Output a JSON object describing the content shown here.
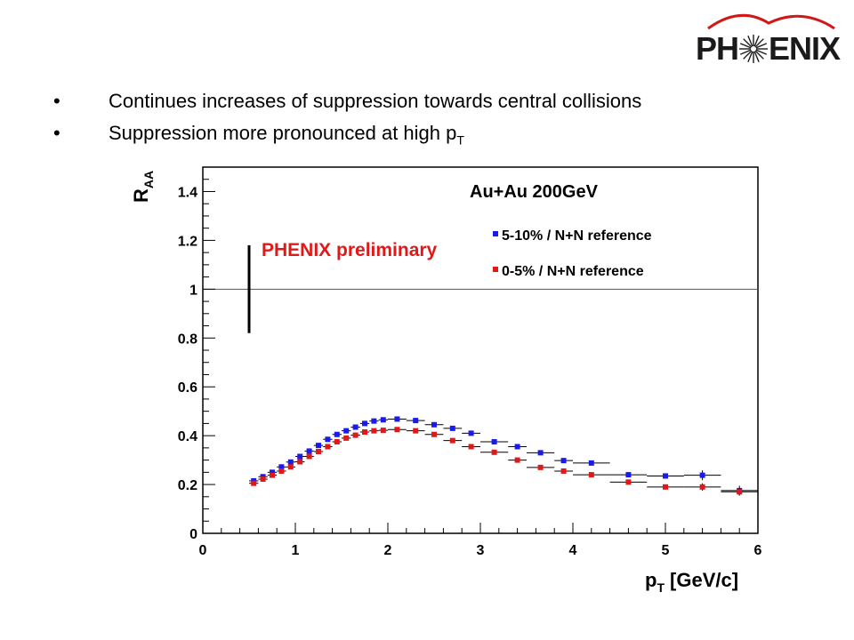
{
  "logo": {
    "left": "PH",
    "right": "ENIX",
    "icon": "phenix-starburst-icon",
    "arc_color": "#d01818"
  },
  "bullets": [
    {
      "text": "Continues increases of suppression towards central collisions",
      "sub": ""
    },
    {
      "text": "Suppression more pronounced at high p",
      "sub": "T"
    }
  ],
  "chart_data": {
    "type": "scatter",
    "title": "Au+Au 200GeV",
    "annotation": "PHENIX preliminary",
    "xlabel": "p",
    "xlabel_sub": "T",
    "xlabel_unit": "[GeV/c]",
    "ylabel": "R",
    "ylabel_sub": "AA",
    "xlim": [
      0,
      6
    ],
    "ylim": [
      0,
      1.5
    ],
    "x_ticks": [
      "0",
      "1",
      "2",
      "3",
      "4",
      "5",
      "6"
    ],
    "y_ticks": [
      "0",
      "0.2",
      "0.4",
      "0.6",
      "0.8",
      "1",
      "1.2",
      "1.4"
    ],
    "reference_line": 1,
    "systematic_bar": {
      "x": 0.5,
      "y_low": 0.82,
      "y_high": 1.18
    },
    "legend_placement": "top-right",
    "series": [
      {
        "name": "5-10% / N+N reference",
        "color": "#1a1aee",
        "points": [
          {
            "x": 0.55,
            "y": 0.215,
            "xerr": 0.05
          },
          {
            "x": 0.65,
            "y": 0.232,
            "xerr": 0.05
          },
          {
            "x": 0.75,
            "y": 0.25,
            "xerr": 0.05
          },
          {
            "x": 0.85,
            "y": 0.272,
            "xerr": 0.05
          },
          {
            "x": 0.95,
            "y": 0.292,
            "xerr": 0.05
          },
          {
            "x": 1.05,
            "y": 0.315,
            "xerr": 0.05
          },
          {
            "x": 1.15,
            "y": 0.337,
            "xerr": 0.05
          },
          {
            "x": 1.25,
            "y": 0.36,
            "xerr": 0.05
          },
          {
            "x": 1.35,
            "y": 0.385,
            "xerr": 0.05
          },
          {
            "x": 1.45,
            "y": 0.405,
            "xerr": 0.05
          },
          {
            "x": 1.55,
            "y": 0.42,
            "xerr": 0.05
          },
          {
            "x": 1.65,
            "y": 0.435,
            "xerr": 0.05
          },
          {
            "x": 1.75,
            "y": 0.45,
            "xerr": 0.05
          },
          {
            "x": 1.85,
            "y": 0.46,
            "xerr": 0.05
          },
          {
            "x": 1.95,
            "y": 0.465,
            "xerr": 0.05
          },
          {
            "x": 2.1,
            "y": 0.468,
            "xerr": 0.1
          },
          {
            "x": 2.3,
            "y": 0.462,
            "xerr": 0.1
          },
          {
            "x": 2.5,
            "y": 0.445,
            "xerr": 0.1
          },
          {
            "x": 2.7,
            "y": 0.43,
            "xerr": 0.1
          },
          {
            "x": 2.9,
            "y": 0.41,
            "xerr": 0.1
          },
          {
            "x": 3.15,
            "y": 0.375,
            "xerr": 0.15
          },
          {
            "x": 3.4,
            "y": 0.355,
            "xerr": 0.1
          },
          {
            "x": 3.65,
            "y": 0.33,
            "xerr": 0.15
          },
          {
            "x": 3.9,
            "y": 0.298,
            "xerr": 0.1
          },
          {
            "x": 4.2,
            "y": 0.288,
            "xerr": 0.2
          },
          {
            "x": 4.6,
            "y": 0.24,
            "xerr": 0.2
          },
          {
            "x": 5.0,
            "y": 0.235,
            "xerr": 0.2
          },
          {
            "x": 5.4,
            "y": 0.238,
            "xerr": 0.2,
            "yerr": 0.02
          },
          {
            "x": 5.8,
            "y": 0.175,
            "xerr": 0.2,
            "yerr": 0.02
          }
        ]
      },
      {
        "name": "0-5% / N+N reference",
        "color": "#e01818",
        "points": [
          {
            "x": 0.55,
            "y": 0.205,
            "xerr": 0.05
          },
          {
            "x": 0.65,
            "y": 0.222,
            "xerr": 0.05
          },
          {
            "x": 0.75,
            "y": 0.238,
            "xerr": 0.05
          },
          {
            "x": 0.85,
            "y": 0.255,
            "xerr": 0.05
          },
          {
            "x": 0.95,
            "y": 0.272,
            "xerr": 0.05
          },
          {
            "x": 1.05,
            "y": 0.293,
            "xerr": 0.05
          },
          {
            "x": 1.15,
            "y": 0.315,
            "xerr": 0.05
          },
          {
            "x": 1.25,
            "y": 0.335,
            "xerr": 0.05
          },
          {
            "x": 1.35,
            "y": 0.355,
            "xerr": 0.05
          },
          {
            "x": 1.45,
            "y": 0.375,
            "xerr": 0.05
          },
          {
            "x": 1.55,
            "y": 0.39,
            "xerr": 0.05
          },
          {
            "x": 1.65,
            "y": 0.402,
            "xerr": 0.05
          },
          {
            "x": 1.75,
            "y": 0.415,
            "xerr": 0.05
          },
          {
            "x": 1.85,
            "y": 0.42,
            "xerr": 0.05
          },
          {
            "x": 1.95,
            "y": 0.422,
            "xerr": 0.05
          },
          {
            "x": 2.1,
            "y": 0.425,
            "xerr": 0.1
          },
          {
            "x": 2.3,
            "y": 0.42,
            "xerr": 0.1
          },
          {
            "x": 2.5,
            "y": 0.405,
            "xerr": 0.1
          },
          {
            "x": 2.7,
            "y": 0.38,
            "xerr": 0.1
          },
          {
            "x": 2.9,
            "y": 0.355,
            "xerr": 0.1
          },
          {
            "x": 3.15,
            "y": 0.332,
            "xerr": 0.15
          },
          {
            "x": 3.4,
            "y": 0.3,
            "xerr": 0.1
          },
          {
            "x": 3.65,
            "y": 0.27,
            "xerr": 0.15
          },
          {
            "x": 3.9,
            "y": 0.255,
            "xerr": 0.1
          },
          {
            "x": 4.2,
            "y": 0.24,
            "xerr": 0.2
          },
          {
            "x": 4.6,
            "y": 0.21,
            "xerr": 0.2
          },
          {
            "x": 5.0,
            "y": 0.19,
            "xerr": 0.2
          },
          {
            "x": 5.4,
            "y": 0.19,
            "xerr": 0.2,
            "yerr": 0.015
          },
          {
            "x": 5.8,
            "y": 0.17,
            "xerr": 0.2,
            "yerr": 0.015
          }
        ]
      }
    ]
  }
}
